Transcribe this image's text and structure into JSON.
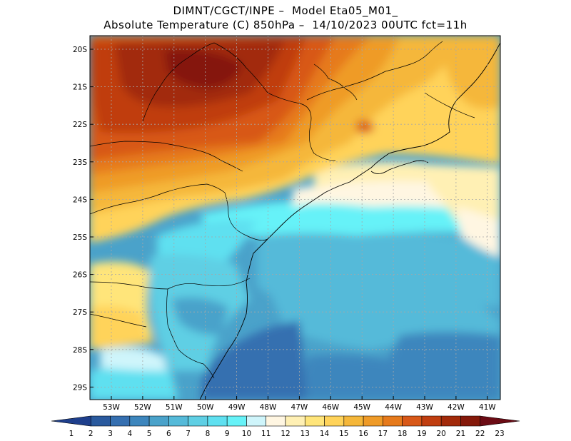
{
  "header": {
    "line1": "DIMNT/CGCT/INPE –  Model Eta05_M01_",
    "line2": "Absolute Temperature (C) 850hPa –  14/10/2023 00UTC fct=11h"
  },
  "map": {
    "lat_labels": [
      "20S",
      "21S",
      "22S",
      "23S",
      "24S",
      "25S",
      "26S",
      "27S",
      "28S",
      "29S"
    ],
    "lon_labels": [
      "53W",
      "52W",
      "51W",
      "50W",
      "49W",
      "48W",
      "47W",
      "46W",
      "45W",
      "44W",
      "43W",
      "42W",
      "41W"
    ]
  },
  "colorbar": {
    "labels": [
      "1",
      "2",
      "3",
      "4",
      "5",
      "6",
      "7",
      "8",
      "9",
      "10",
      "11",
      "12",
      "13",
      "14",
      "15",
      "16",
      "17",
      "18",
      "19",
      "20",
      "21",
      "22",
      "23"
    ],
    "colors": [
      "#1e3f8c",
      "#2a5a9e",
      "#356fb0",
      "#3d86bd",
      "#4aa2ca",
      "#55bad9",
      "#5fcfe4",
      "#5fe0f0",
      "#66f2f8",
      "#cff5fb",
      "#fff6e2",
      "#fff0b4",
      "#ffe57a",
      "#ffd35a",
      "#f5b73a",
      "#ef9b28",
      "#e67a1c",
      "#d85818",
      "#c03e10",
      "#a22a0a",
      "#85190a",
      "#6b0b14"
    ]
  }
}
